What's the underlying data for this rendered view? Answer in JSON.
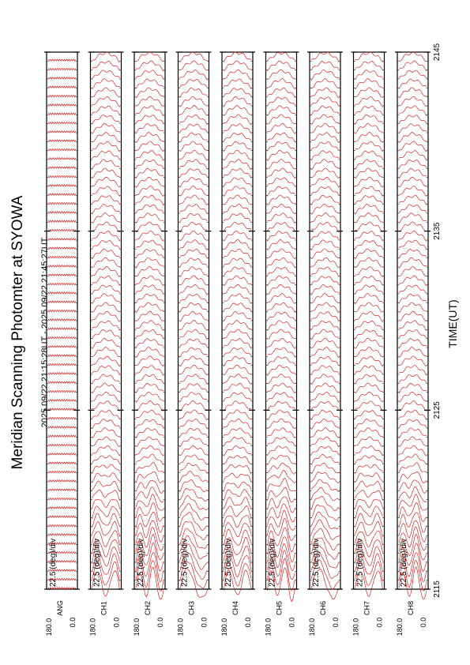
{
  "title": "Meridian Scanning Photomter at SYOWA",
  "subtitle": "2025 09/22 21:15:28UT - 2025 09/22 21:45:27UT",
  "xlabel": "TIME(UT)",
  "colors": {
    "trace": "#e00000",
    "frame": "#000000",
    "background": "#ffffff"
  },
  "chart_data": {
    "type": "line",
    "title": "Meridian Scanning Photomter at SYOWA",
    "subtitle": "2025 09/22 21:15:28UT - 2025 09:22 21:45:27UT",
    "xlabel": "TIME(UT)",
    "x_ticks": [
      "2115",
      "2125",
      "2135",
      "2145"
    ],
    "xlim": [
      "21:15",
      "21:45"
    ],
    "panels": [
      {
        "channel": "ANG",
        "scale": "22.5 (deg)/div",
        "ymax": "180.0",
        "ymin": "0.0"
      },
      {
        "channel": "CH1",
        "scale": "22.5 (deg)/div",
        "ymax": "180.0",
        "ymin": "0.0"
      },
      {
        "channel": "CH2",
        "scale": "22.5 (deg)/div",
        "ymax": "180.0",
        "ymin": "0.0"
      },
      {
        "channel": "CH3",
        "scale": "22.5 (deg)/div",
        "ymax": "180.0",
        "ymin": "0.0"
      },
      {
        "channel": "CH4",
        "scale": "22.5 (deg)/div",
        "ymax": "180.0",
        "ymin": "0.0"
      },
      {
        "channel": "CH5",
        "scale": "22.5 (deg)/div",
        "ymax": "180.0",
        "ymin": "0.0"
      },
      {
        "channel": "CH6",
        "scale": "22.5 (deg)/div",
        "ymax": "180.0",
        "ymin": "0.0"
      },
      {
        "channel": "CH7",
        "scale": "22.5 (deg)/div",
        "ymax": "180.0",
        "ymin": "0.0"
      },
      {
        "channel": "CH8",
        "scale": "22.5 (deg)/div",
        "ymax": "180.0",
        "ymin": "0.0"
      }
    ],
    "scan_count": 60
  }
}
